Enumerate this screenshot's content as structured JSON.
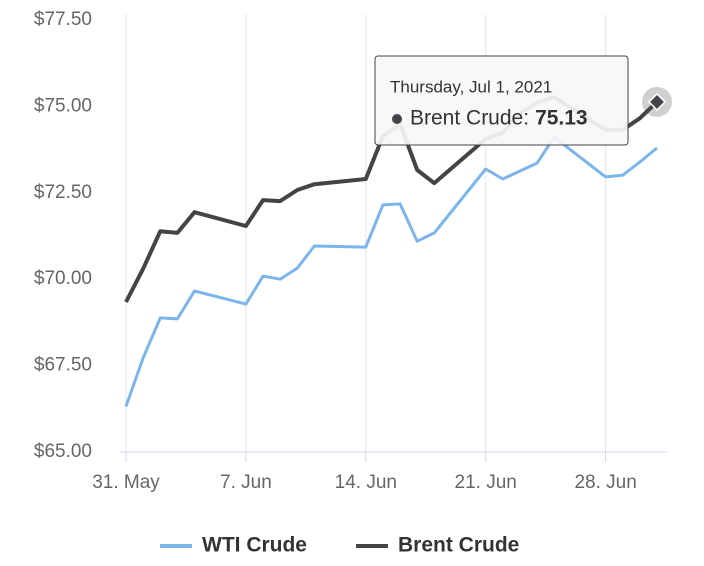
{
  "chart_data": {
    "type": "line",
    "x": [
      "2021-05-31",
      "2021-06-01",
      "2021-06-02",
      "2021-06-03",
      "2021-06-04",
      "2021-06-07",
      "2021-06-08",
      "2021-06-09",
      "2021-06-10",
      "2021-06-11",
      "2021-06-14",
      "2021-06-15",
      "2021-06-16",
      "2021-06-17",
      "2021-06-18",
      "2021-06-21",
      "2021-06-22",
      "2021-06-23",
      "2021-06-24",
      "2021-06-25",
      "2021-06-28",
      "2021-06-29",
      "2021-06-30",
      "2021-07-01"
    ],
    "series": [
      {
        "name": "WTI Crude",
        "color": "#7cb5ec",
        "values": [
          66.32,
          67.72,
          68.88,
          68.85,
          69.66,
          69.28,
          70.09,
          70.0,
          70.32,
          70.96,
          70.93,
          72.15,
          72.18,
          71.1,
          71.34,
          73.19,
          72.9,
          73.13,
          73.36,
          74.11,
          72.96,
          73.01,
          73.39,
          73.8
        ]
      },
      {
        "name": "Brent Crude",
        "color": "#434348",
        "values": [
          69.34,
          70.3,
          71.39,
          71.34,
          71.94,
          71.54,
          72.29,
          72.26,
          72.58,
          72.75,
          72.9,
          74.14,
          74.49,
          73.16,
          72.78,
          74.06,
          74.24,
          74.8,
          75.1,
          75.27,
          74.32,
          74.32,
          74.66,
          75.13
        ]
      }
    ],
    "xlim": [
      "2021-05-31",
      "2021-07-01"
    ],
    "xticks": [
      {
        "value": "2021-05-31",
        "label": "31. May"
      },
      {
        "value": "2021-06-07",
        "label": "7. Jun"
      },
      {
        "value": "2021-06-14",
        "label": "14. Jun"
      },
      {
        "value": "2021-06-21",
        "label": "21. Jun"
      },
      {
        "value": "2021-06-28",
        "label": "28. Jun"
      }
    ],
    "ylim": [
      65,
      77.5
    ],
    "yticks": [
      {
        "value": 65,
        "label": "$65.00"
      },
      {
        "value": 67.5,
        "label": "$67.50"
      },
      {
        "value": 70,
        "label": "$70.00"
      },
      {
        "value": 72.5,
        "label": "$72.50"
      },
      {
        "value": 75,
        "label": "$75.00"
      },
      {
        "value": 77.5,
        "label": "$77.50"
      }
    ],
    "grid": "x",
    "legend": "bottom",
    "tooltip": {
      "header": "Thursday, Jul 1, 2021",
      "label": "Brent Crude:"
    }
  }
}
